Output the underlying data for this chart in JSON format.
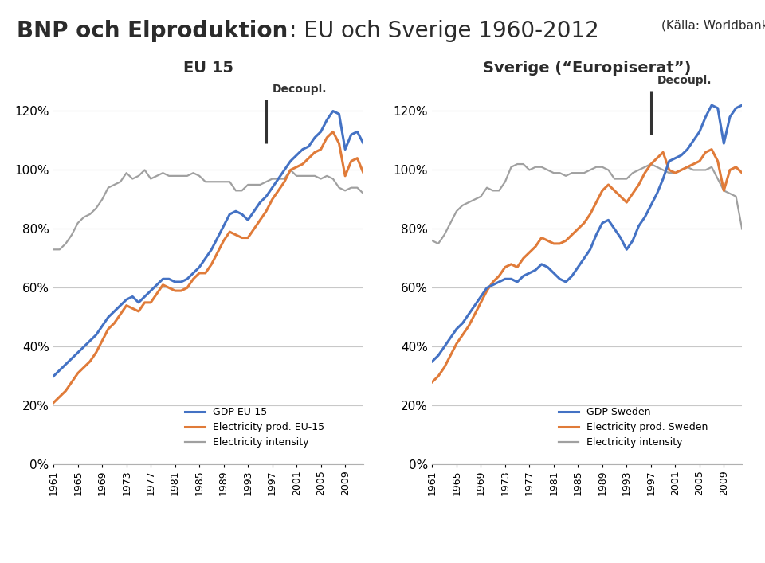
{
  "title_bold": "BNP och Elproduktion",
  "title_normal": ": EU och Sverige 1960-2012",
  "title_source": "(Källa: Worldbank)",
  "title_color": "#2b2b2b",
  "separator_color": "#8B6914",
  "left_subtitle": "EU 15",
  "right_subtitle": "Sverige (“Europiserat”)",
  "decoupl_label": "Decoupl.",
  "years": [
    1961,
    1962,
    1963,
    1964,
    1965,
    1966,
    1967,
    1968,
    1969,
    1970,
    1971,
    1972,
    1973,
    1974,
    1975,
    1976,
    1977,
    1978,
    1979,
    1980,
    1981,
    1982,
    1983,
    1984,
    1985,
    1986,
    1987,
    1988,
    1989,
    1990,
    1991,
    1992,
    1993,
    1994,
    1995,
    1996,
    1997,
    1998,
    1999,
    2000,
    2001,
    2002,
    2003,
    2004,
    2005,
    2006,
    2007,
    2008,
    2009,
    2010,
    2011,
    2012
  ],
  "eu_gdp": [
    30,
    32,
    34,
    36,
    38,
    40,
    42,
    44,
    47,
    50,
    52,
    54,
    56,
    57,
    55,
    57,
    59,
    61,
    63,
    63,
    62,
    62,
    63,
    65,
    67,
    70,
    73,
    77,
    81,
    85,
    86,
    85,
    83,
    86,
    89,
    91,
    94,
    97,
    100,
    103,
    105,
    107,
    108,
    111,
    113,
    117,
    120,
    119,
    107,
    112,
    113,
    109
  ],
  "eu_elec": [
    21,
    23,
    25,
    28,
    31,
    33,
    35,
    38,
    42,
    46,
    48,
    51,
    54,
    53,
    52,
    55,
    55,
    58,
    61,
    60,
    59,
    59,
    60,
    63,
    65,
    65,
    68,
    72,
    76,
    79,
    78,
    77,
    77,
    80,
    83,
    86,
    90,
    93,
    96,
    100,
    101,
    102,
    104,
    106,
    107,
    111,
    113,
    109,
    98,
    103,
    104,
    99
  ],
  "eu_intensity": [
    73,
    73,
    75,
    78,
    82,
    84,
    85,
    87,
    90,
    94,
    95,
    96,
    99,
    97,
    98,
    100,
    97,
    98,
    99,
    98,
    98,
    98,
    98,
    99,
    98,
    96,
    96,
    96,
    96,
    96,
    93,
    93,
    95,
    95,
    95,
    96,
    97,
    97,
    97,
    100,
    98,
    98,
    98,
    98,
    97,
    98,
    97,
    94,
    93,
    94,
    94,
    92
  ],
  "sw_gdp": [
    35,
    37,
    40,
    43,
    46,
    48,
    51,
    54,
    57,
    60,
    61,
    62,
    63,
    63,
    62,
    64,
    65,
    66,
    68,
    67,
    65,
    63,
    62,
    64,
    67,
    70,
    73,
    78,
    82,
    83,
    80,
    77,
    73,
    76,
    81,
    84,
    88,
    92,
    97,
    103,
    104,
    105,
    107,
    110,
    113,
    118,
    122,
    121,
    109,
    118,
    121,
    122
  ],
  "sw_elec": [
    28,
    30,
    33,
    37,
    41,
    44,
    47,
    51,
    55,
    59,
    62,
    64,
    67,
    68,
    67,
    70,
    72,
    74,
    77,
    76,
    75,
    75,
    76,
    78,
    80,
    82,
    85,
    89,
    93,
    95,
    93,
    91,
    89,
    92,
    95,
    99,
    102,
    104,
    106,
    100,
    99,
    100,
    101,
    102,
    103,
    106,
    107,
    103,
    93,
    100,
    101,
    99
  ],
  "sw_intensity": [
    76,
    75,
    78,
    82,
    86,
    88,
    89,
    90,
    91,
    94,
    93,
    93,
    96,
    101,
    102,
    102,
    100,
    101,
    101,
    100,
    99,
    99,
    98,
    99,
    99,
    99,
    100,
    101,
    101,
    100,
    97,
    97,
    97,
    99,
    100,
    101,
    102,
    101,
    100,
    99,
    99,
    100,
    101,
    100,
    100,
    100,
    101,
    97,
    93,
    92,
    91,
    80
  ],
  "gdp_color": "#4472C4",
  "elec_color": "#E07B39",
  "intensity_color": "#A0A0A0",
  "yticks": [
    0,
    20,
    40,
    60,
    80,
    100,
    120
  ],
  "xlim_eu": [
    1961,
    2012
  ],
  "xlim_sw": [
    1961,
    2012
  ],
  "ylim": [
    0,
    130
  ],
  "bg": "#FFFFFF"
}
